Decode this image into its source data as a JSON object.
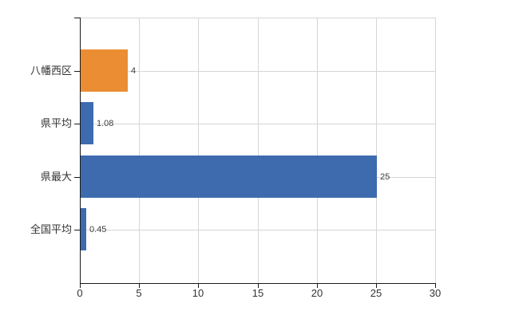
{
  "chart_data": {
    "type": "bar",
    "orientation": "horizontal",
    "title": "",
    "xlabel": "",
    "ylabel": "",
    "categories": [
      "八幡西区",
      "県平均",
      "県最大",
      "全国平均"
    ],
    "values": [
      4,
      1.08,
      25,
      0.45
    ],
    "value_labels": [
      "4",
      "1.08",
      "25",
      "0.45"
    ],
    "series": [
      {
        "name": "",
        "values": [
          4,
          1.08,
          25,
          0.45
        ],
        "colors": [
          "#eb8d32",
          "#3d6bae",
          "#3d6bae",
          "#3d6bae"
        ]
      }
    ],
    "xlim": [
      0,
      30
    ],
    "x_ticks": [
      0,
      5,
      10,
      15,
      20,
      25,
      30
    ],
    "x_tick_labels": [
      "0",
      "5",
      "10",
      "15",
      "20",
      "25",
      "30"
    ],
    "grid": "on",
    "legend": "none"
  },
  "colors": {
    "bar_orange": "#eb8d32",
    "bar_blue": "#3d6bae",
    "gridline": "#d6d6d6",
    "axis": "#1a1a1a",
    "tick_text": "#333333",
    "value_text": "#404040",
    "background": "#ffffff"
  }
}
